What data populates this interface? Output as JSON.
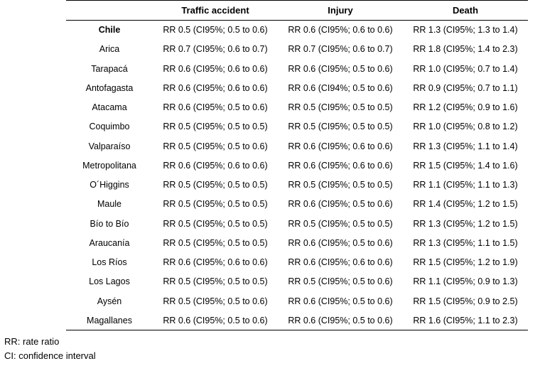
{
  "table": {
    "headers": [
      "",
      "Traffic accident",
      "Injury",
      "Death"
    ],
    "rows": [
      {
        "region": "Chile",
        "bold": true,
        "traffic": "RR 0.5 (CI95%; 0.5 to 0.6)",
        "injury": "RR 0.6 (CI95%; 0.6 to 0.6)",
        "death": "RR 1.3 (CI95%; 1.3 to 1.4)"
      },
      {
        "region": "Arica",
        "bold": false,
        "traffic": "RR 0.7 (CI95%; 0.6 to 0.7)",
        "injury": "RR 0.7 (CI95%; 0.6 to 0.7)",
        "death": "RR 1.8 (CI95%; 1.4 to 2.3)"
      },
      {
        "region": "Tarapacá",
        "bold": false,
        "traffic": "RR 0.6 (CI95%; 0.6 to 0.6)",
        "injury": "RR 0.6 (CI95%; 0.5 to 0.6)",
        "death": "RR 1.0 (CI95%; 0.7 to 1.4)"
      },
      {
        "region": "Antofagasta",
        "bold": false,
        "traffic": "RR 0.6 (CI95%; 0.6 to 0.6)",
        "injury": "RR 0.6 (CI94%; 0.5 to 0.6)",
        "death": "RR 0.9 (CI95%; 0.7 to 1.1)"
      },
      {
        "region": "Atacama",
        "bold": false,
        "traffic": "RR 0.6 (CI95%; 0.5 to 0.6)",
        "injury": "RR 0.5 (CI95%; 0.5 to 0.5)",
        "death": "RR 1.2 (CI95%; 0.9 to 1.6)"
      },
      {
        "region": "Coquimbo",
        "bold": false,
        "traffic": "RR 0.5 (CI95%; 0.5 to 0.5)",
        "injury": "RR 0.5 (CI95%; 0.5 to 0.5)",
        "death": "RR 1.0 (CI95%; 0.8 to 1.2)"
      },
      {
        "region": "Valparaíso",
        "bold": false,
        "traffic": "RR 0.5 (CI95%; 0.5 to 0.6)",
        "injury": "RR 0.6 (CI95%; 0.6 to 0.6)",
        "death": "RR 1.3 (CI95%; 1.1 to 1.4)"
      },
      {
        "region": "Metropolitana",
        "bold": false,
        "traffic": "RR 0.6 (CI95%; 0.6 to 0.6)",
        "injury": "RR 0.6 (CI95%; 0.6 to 0.6)",
        "death": "RR 1.5 (CI95%; 1.4 to 1.6)"
      },
      {
        "region": "O´Higgins",
        "bold": false,
        "traffic": "RR 0.5 (CI95%; 0.5 to 0.5)",
        "injury": "RR 0.5 (CI95%; 0.5 to 0.5)",
        "death": "RR 1.1 (CI95%; 1.1 to 1.3)"
      },
      {
        "region": "Maule",
        "bold": false,
        "traffic": "RR 0.5 (CI95%; 0.5 to 0.5)",
        "injury": "RR 0.6 (CI95%; 0.5 to 0.6)",
        "death": "RR 1.4 (CI95%; 1.2 to 1.5)"
      },
      {
        "region": "Bío to Bío",
        "bold": false,
        "traffic": "RR 0.5 (CI95%; 0.5 to 0.5)",
        "injury": "RR 0.5 (CI95%; 0.5 to 0.5)",
        "death": "RR 1.3 (CI95%; 1.2 to 1.5)"
      },
      {
        "region": "Araucanía",
        "bold": false,
        "traffic": "RR 0.5 (CI95%; 0.5 to 0.5)",
        "injury": "RR 0.6 (CI95%; 0.5 to 0.6)",
        "death": "RR 1.3 (CI95%; 1.1 to 1.5)"
      },
      {
        "region": "Los Ríos",
        "bold": false,
        "traffic": "RR 0.6 (CI95%; 0.6 to 0.6)",
        "injury": "RR 0.6 (CI95%; 0.6 to 0.6)",
        "death": "RR 1.5 (CI95%; 1.2 to 1.9)"
      },
      {
        "region": "Los Lagos",
        "bold": false,
        "traffic": "RR 0.5 (CI95%; 0.5 to 0.5)",
        "injury": "RR 0.5 (CI95%; 0.5 to 0.6)",
        "death": "RR 1.1 (CI95%; 0.9 to 1.3)"
      },
      {
        "region": "Aysén",
        "bold": false,
        "traffic": "RR 0.5 (CI95%; 0.5 to 0.6)",
        "injury": "RR 0.6 (CI95%; 0.5 to 0.6)",
        "death": "RR 1.5 (CI95%; 0.9 to 2.5)"
      },
      {
        "region": "Magallanes",
        "bold": false,
        "traffic": "RR 0.6 (CI95%; 0.5 to 0.6)",
        "injury": "RR 0.6 (CI95%; 0.5 to 0.6)",
        "death": "RR 1.6 (CI95%; 1.1 to 2.3)"
      }
    ]
  },
  "footnotes": [
    "RR: rate ratio",
    "CI: confidence interval"
  ]
}
